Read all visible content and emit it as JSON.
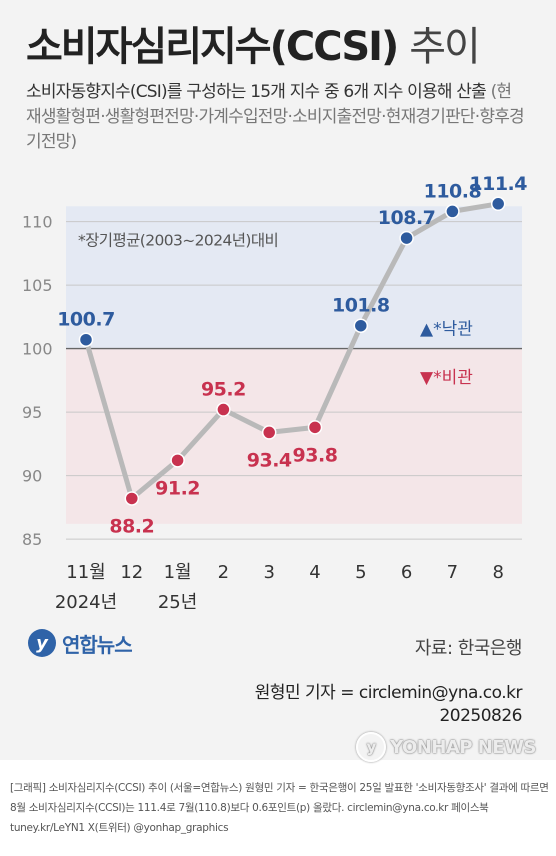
{
  "header": {
    "title_main": "소비자심리지수(CCSI)",
    "title_suffix": "추이",
    "subtitle_main": "소비자동향지수(CSI)를 구성하는 15개 지수 중 6개 지수 이용해 산출",
    "subtitle_detail": "(현재생활형편·생활형편전망·가계수입전망·소비지출전망·현재경기판단·향후경기전망)"
  },
  "chart_data": {
    "type": "line",
    "categories": [
      "11월",
      "12",
      "1월",
      "2",
      "3",
      "4",
      "5",
      "6",
      "7",
      "8"
    ],
    "year_labels": [
      "2024년",
      "25년"
    ],
    "values": [
      100.7,
      88.2,
      91.2,
      95.2,
      93.4,
      93.8,
      101.8,
      108.7,
      110.8,
      111.4
    ],
    "value_labels": [
      "100.7",
      "88.2",
      "91.2",
      "95.2",
      "93.4",
      "93.8",
      "101.8",
      "108.7",
      "110.8",
      "111.4"
    ],
    "y_ticks": [
      "110",
      "105",
      "100",
      "95",
      "90",
      "85"
    ],
    "ylim": [
      84.3,
      112.8
    ],
    "baseline": 100,
    "baseline_note": "*장기평균(2003~2024년)대비",
    "legend": {
      "optimism": "▲*낙관",
      "pessimism": "▼*비관"
    },
    "grid": true,
    "colors": {
      "above": "#2e5b9e",
      "below": "#c8324f",
      "line": "#b9b9b9",
      "band_above": "#e4e9f3",
      "band_below": "#f4e6e8"
    }
  },
  "footer": {
    "logo_text": "연합뉴스",
    "source": "자료: 한국은행",
    "byline": "원형민 기자 = circlemin@yna.co.kr",
    "date": "20250826",
    "watermark": "YONHAP NEWS"
  },
  "caption": "[그래픽] 소비자심리지수(CCSI) 추이 (서울=연합뉴스) 원형민 기자 = 한국은행이 25일 발표한 '소비자동향조사' 결과에 따르면 8월 소비자심리지수(CCSI)는 111.4로 7월(110.8)보다 0.6포인트(p) 올랐다. circlemin@yna.co.kr 페이스북 tuney.kr/LeYN1 X(트위터) @yonhap_graphics"
}
